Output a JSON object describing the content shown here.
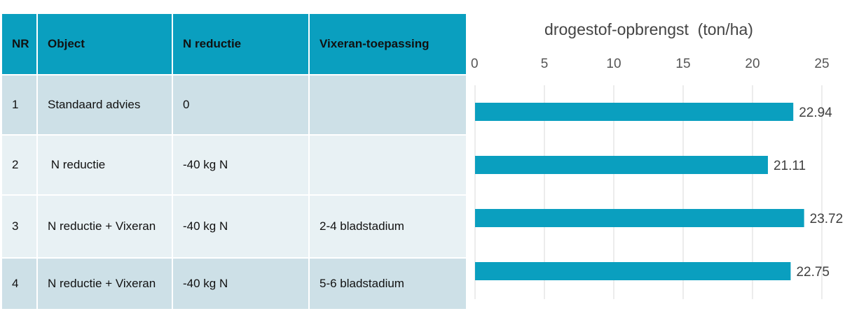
{
  "table": {
    "headers": [
      "NR",
      "Object",
      "N reductie",
      "Vixeran-toepassing"
    ],
    "rows": [
      [
        "1",
        "Standaard advies",
        "0",
        ""
      ],
      [
        "2",
        " N reductie",
        "-40 kg N",
        ""
      ],
      [
        "3",
        "N reductie + Vixeran",
        "-40 kg N",
        "2-4 bladstadium"
      ],
      [
        "4",
        "N reductie + Vixeran",
        "-40 kg N",
        "5-6 bladstadium"
      ]
    ]
  },
  "colors": {
    "header_bg": "#0a9fbf",
    "bar": "#0a9fbf",
    "row_dark": "#cde0e7",
    "row_light": "#e8f1f4"
  },
  "chart_data": {
    "type": "bar",
    "orientation": "horizontal",
    "title": "drogestof-opbrengst  (ton/ha)",
    "categories": [
      "1",
      "2",
      "3",
      "4"
    ],
    "values": [
      22.94,
      21.11,
      23.72,
      22.75
    ],
    "value_labels": [
      "22.94",
      "21.11",
      "23.72",
      "22.75"
    ],
    "xlim": [
      0,
      25
    ],
    "xticks": [
      "0",
      "5",
      "10",
      "15",
      "20",
      "25"
    ],
    "grid": true,
    "axis_position": "top"
  }
}
